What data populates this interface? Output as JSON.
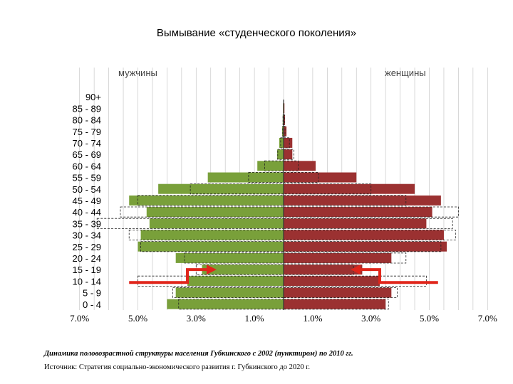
{
  "slide": {
    "title": "Вымывание «студенческого поколения»",
    "caption": "Динамика половозрастной структуры населения Губкинского с 2002 (пунктиром) по 2010 гг.",
    "source": "Источник: Стратегия социально-экономического развития г. Губкинского до 2020 г."
  },
  "colors": {
    "male": "#79a03a",
    "female": "#9b3131",
    "arrow": "#e0251a",
    "grid": "#c8c8c8",
    "dashed": "#222222"
  },
  "chart_data": {
    "type": "bar",
    "orientation": "horizontal-pyramid",
    "title": "",
    "left_label": "мужчины",
    "right_label": "женщины",
    "unit": "%",
    "xlim": [
      -7,
      7
    ],
    "x_ticks": [
      -7,
      -5,
      -3,
      -1,
      1,
      3,
      5,
      7
    ],
    "x_tick_labels": [
      "7.0%",
      "5.0%",
      "3.0%",
      "1.0%",
      "1.0%",
      "3.0%",
      "5.0%",
      "7.0%"
    ],
    "grid": true,
    "categories": [
      "90+",
      "85 - 89",
      "80 - 84",
      "75 - 79",
      "70 - 74",
      "65 - 69",
      "60 - 64",
      "55 - 59",
      "50 - 54",
      "45 - 49",
      "40 - 44",
      "35 - 39",
      "30 - 34",
      "25 - 29",
      "20 - 24",
      "15 - 19",
      "10 - 14",
      "5 - 9",
      "0 - 4"
    ],
    "series": [
      {
        "name": "мужчины",
        "year": 2010,
        "style": "solid",
        "values": [
          0.0,
          0.02,
          0.03,
          0.05,
          0.15,
          0.22,
          0.9,
          2.6,
          4.3,
          5.3,
          4.7,
          4.6,
          4.9,
          5.0,
          3.7,
          2.8,
          3.3,
          3.7,
          4.0
        ]
      },
      {
        "name": "женщины",
        "year": 2010,
        "style": "solid",
        "values": [
          0.0,
          0.03,
          0.05,
          0.1,
          0.3,
          0.3,
          1.1,
          2.5,
          4.5,
          5.4,
          5.1,
          4.9,
          5.5,
          5.6,
          3.7,
          2.7,
          3.3,
          3.7,
          3.5
        ]
      },
      {
        "name": "мужчины",
        "year": 2002,
        "style": "dashed",
        "values": [
          0.0,
          0.0,
          0.02,
          0.03,
          0.1,
          0.2,
          0.65,
          1.2,
          3.2,
          5.0,
          5.6,
          6.4,
          5.3,
          4.9,
          3.4,
          3.0,
          5.0,
          3.8,
          3.6
        ]
      },
      {
        "name": "женщины",
        "year": 2002,
        "style": "dashed",
        "values": [
          0.0,
          0.0,
          0.03,
          0.05,
          0.2,
          0.35,
          0.5,
          1.2,
          3.0,
          4.2,
          6.0,
          5.8,
          5.9,
          5.4,
          4.2,
          2.4,
          4.9,
          3.9,
          3.6
        ]
      }
    ],
    "annotations": [
      {
        "type": "arrow",
        "side": "left",
        "target_group": "15 - 19",
        "from_group": "10 - 14"
      },
      {
        "type": "arrow",
        "side": "right",
        "target_group": "15 - 19",
        "from_group": "10 - 14"
      }
    ]
  }
}
